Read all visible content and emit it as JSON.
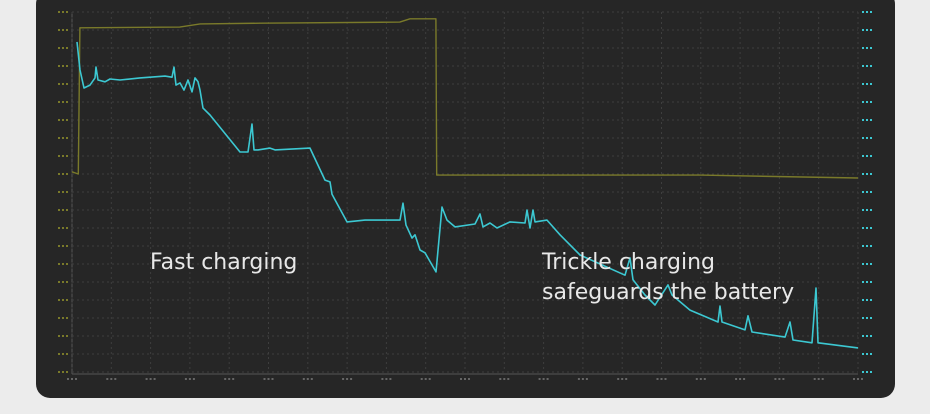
{
  "chart_data": {
    "type": "line",
    "annotations": [
      "Fast charging",
      "Trickle charging",
      "safeguards the battery"
    ],
    "xlim": [
      0,
      100
    ],
    "ylim": [
      0,
      100
    ],
    "xticks": [
      0,
      5,
      10,
      15,
      20,
      25,
      30,
      35,
      40,
      45,
      50,
      55,
      60,
      65,
      70,
      75,
      80,
      85,
      90,
      95,
      100
    ],
    "yticks": [
      0,
      5,
      10,
      15,
      20,
      25,
      30,
      35,
      40,
      45,
      50,
      55,
      60,
      65,
      70,
      75,
      80,
      85,
      90,
      95,
      100
    ],
    "grid": true,
    "series": [
      {
        "color": "#7a7a2a",
        "x": [
          0,
          0.8,
          1.0,
          13.7,
          16.3,
          23.9,
          41.7,
          43.0,
          46.3,
          46.4,
          79.9,
          100
        ],
        "values": [
          55.6,
          55.0,
          95.6,
          95.8,
          96.7,
          96.9,
          97.2,
          98.1,
          98.1,
          54.7,
          54.7,
          53.9
        ]
      },
      {
        "color": "#3cc8d2",
        "x": [
          0.64,
          1.02,
          1.53,
          2.29,
          2.93,
          3.05,
          3.31,
          4.2,
          4.83,
          6.11,
          8.65,
          11.83,
          12.72,
          12.98,
          13.23,
          13.74,
          14.25,
          14.76,
          15.27,
          15.65,
          16.03,
          16.28,
          16.67,
          17.56,
          21.37,
          22.39,
          22.9,
          23.16,
          23.66,
          25.19,
          25.83,
          30.28,
          32.19,
          32.82,
          33.08,
          34.99,
          37.28,
          41.73,
          42.11,
          42.49,
          43.26,
          43.64,
          44.27,
          44.91,
          46.31,
          47.07,
          47.71,
          48.73,
          51.27,
          51.91,
          52.29,
          53.18,
          54.07,
          55.73,
          57.63,
          57.89,
          58.27,
          58.65,
          58.91,
          60.43,
          62.09,
          64.63,
          70.36,
          70.99,
          71.37,
          72.9,
          74.17,
          75.83,
          76.34,
          78.63,
          82.19,
          82.44,
          82.7,
          85.62,
          86.01,
          86.51,
          90.71,
          91.35,
          91.73,
          94.15,
          94.66,
          94.91,
          100
        ],
        "values": [
          91.7,
          83.9,
          78.9,
          79.7,
          81.7,
          84.7,
          81.1,
          80.6,
          81.4,
          81.1,
          81.7,
          82.2,
          81.9,
          84.7,
          79.7,
          80.3,
          78.3,
          81.1,
          77.8,
          81.7,
          80.6,
          78.3,
          73.3,
          71.4,
          61.1,
          61.1,
          68.9,
          61.7,
          61.7,
          62.2,
          61.7,
          62.2,
          53.3,
          52.8,
          49.4,
          41.7,
          42.2,
          42.2,
          46.9,
          40.8,
          37.2,
          38.1,
          33.9,
          33.1,
          27.8,
          45.8,
          42.2,
          40.3,
          41.1,
          43.9,
          40.3,
          41.4,
          40.0,
          41.7,
          41.4,
          45.0,
          40.0,
          45.0,
          41.7,
          42.2,
          38.1,
          32.5,
          26.9,
          31.7,
          25.6,
          21.4,
          18.6,
          24.2,
          21.4,
          17.2,
          13.9,
          18.3,
          13.9,
          11.7,
          15.6,
          11.1,
          9.7,
          13.9,
          8.9,
          8.1,
          23.3,
          8.1,
          6.7
        ]
      }
    ]
  }
}
